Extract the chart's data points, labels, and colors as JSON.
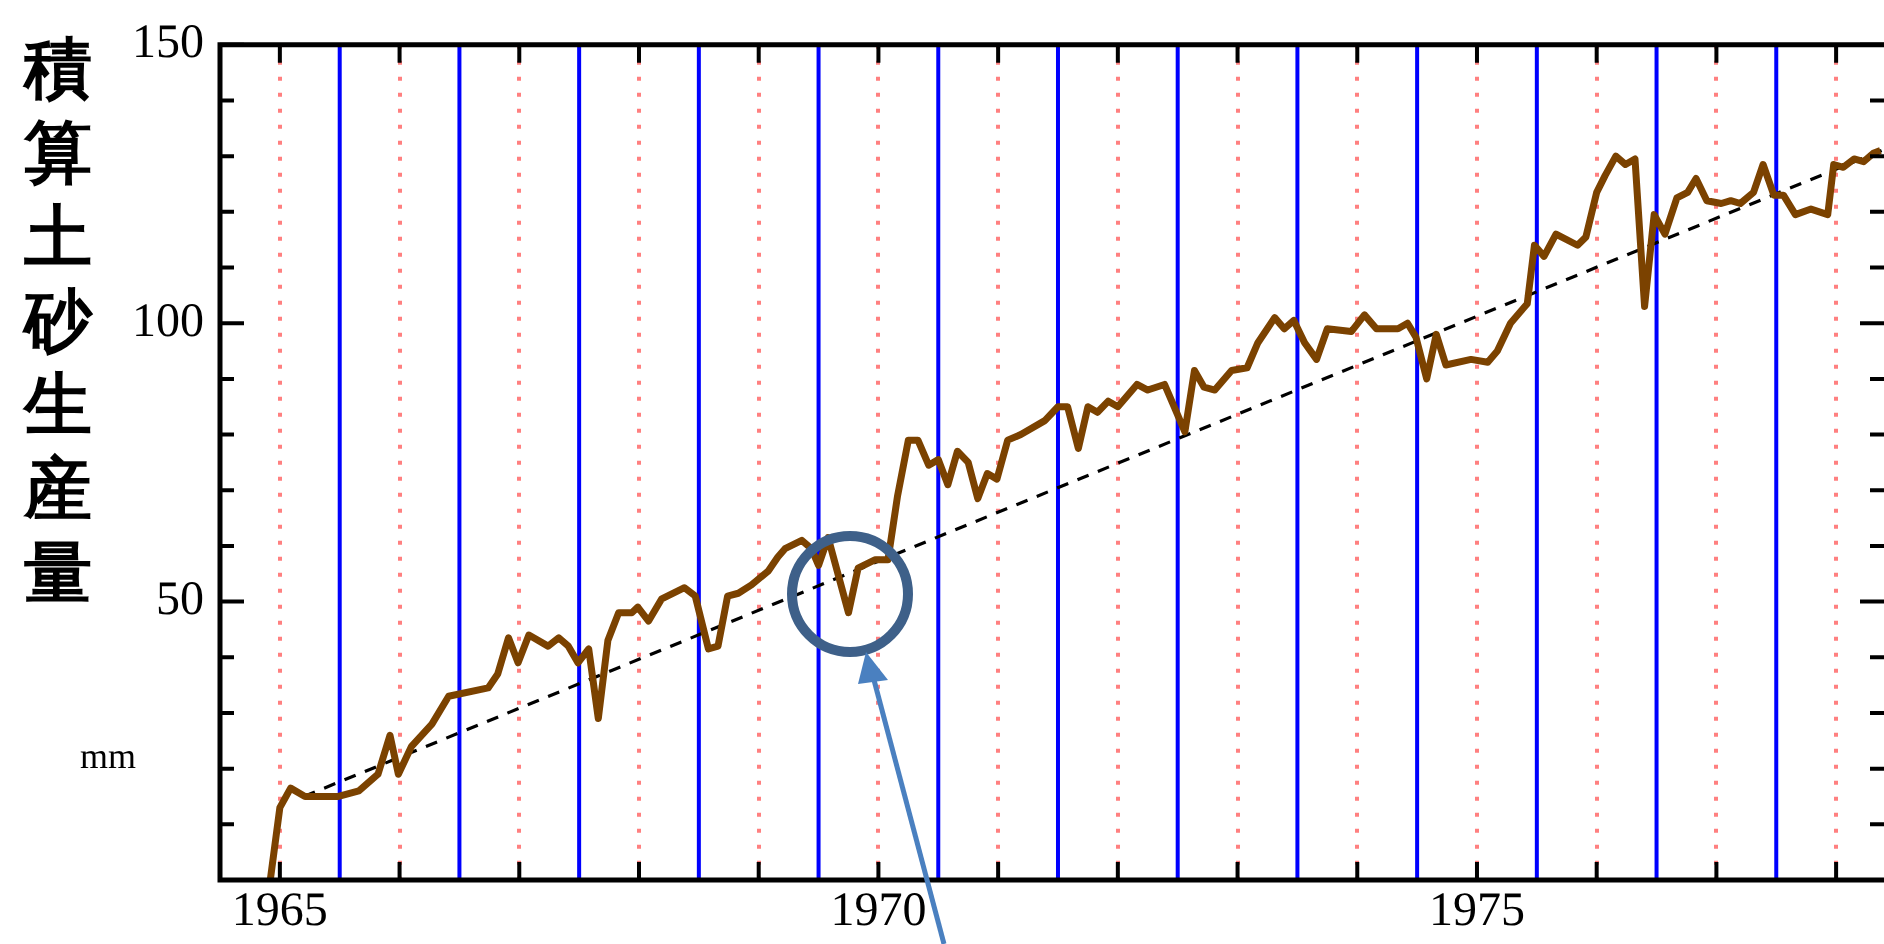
{
  "chart_data": {
    "type": "line",
    "ylabel": "積算土砂生産量",
    "annotations": [
      "mm"
    ],
    "xlim": [
      1964.5,
      1978.4
    ],
    "ylim": [
      0,
      150
    ],
    "xticks": [
      1965,
      {
        "value": 1966,
        "label": null
      },
      {
        "value": 1967,
        "label": null
      },
      {
        "value": 1968,
        "label": null
      },
      {
        "value": 1969,
        "label": null
      },
      1970,
      {
        "value": 1971,
        "label": null
      },
      {
        "value": 1972,
        "label": null
      },
      {
        "value": 1973,
        "label": null
      },
      {
        "value": 1974,
        "label": null
      },
      1975,
      {
        "value": 1976,
        "label": null
      },
      {
        "value": 1977,
        "label": null
      },
      {
        "value": 1978,
        "label": null
      }
    ],
    "yticks": [
      {
        "value": 10,
        "label": null
      },
      {
        "value": 20,
        "label": null
      },
      {
        "value": 30,
        "label": null
      },
      {
        "value": 40,
        "label": null
      },
      50,
      {
        "value": 60,
        "label": null
      },
      {
        "value": 70,
        "label": null
      },
      {
        "value": 80,
        "label": null
      },
      {
        "value": 90,
        "label": null
      },
      100,
      {
        "value": 110,
        "label": null
      },
      {
        "value": 120,
        "label": null
      },
      {
        "value": 130,
        "label": null
      },
      {
        "value": 140,
        "label": null
      },
      150
    ],
    "grid": "x",
    "legend": false,
    "marker": "none",
    "ref_lines": [
      {
        "axis": "x",
        "value": 1965.5,
        "color": "#0000ff",
        "line_style": "solid"
      },
      {
        "axis": "x",
        "value": 1966.5,
        "color": "#0000ff",
        "line_style": "solid"
      },
      {
        "axis": "x",
        "value": 1967.5,
        "color": "#0000ff",
        "line_style": "solid"
      },
      {
        "axis": "x",
        "value": 1968.5,
        "color": "#0000ff",
        "line_style": "solid"
      },
      {
        "axis": "x",
        "value": 1969.5,
        "color": "#0000ff",
        "line_style": "solid"
      },
      {
        "axis": "x",
        "value": 1970.5,
        "color": "#0000ff",
        "line_style": "solid"
      },
      {
        "axis": "x",
        "value": 1971.5,
        "color": "#0000ff",
        "line_style": "solid"
      },
      {
        "axis": "x",
        "value": 1972.5,
        "color": "#0000ff",
        "line_style": "solid"
      },
      {
        "axis": "x",
        "value": 1973.5,
        "color": "#0000ff",
        "line_style": "solid"
      },
      {
        "axis": "x",
        "value": 1974.5,
        "color": "#0000ff",
        "line_style": "solid"
      },
      {
        "axis": "x",
        "value": 1975.5,
        "color": "#0000ff",
        "line_style": "solid"
      },
      {
        "axis": "x",
        "value": 1976.5,
        "color": "#0000ff",
        "line_style": "solid"
      },
      {
        "axis": "x",
        "value": 1977.5,
        "color": "#0000ff",
        "line_style": "solid"
      }
    ],
    "series": [
      {
        "type": "line",
        "color": "#7b4200",
        "line_style": "solid",
        "x": [
          1964.92,
          1965.0,
          1965.09,
          1965.21,
          1965.49,
          1965.66,
          1965.82,
          1965.92,
          1965.99,
          1966.1,
          1966.27,
          1966.41,
          1966.74,
          1966.82,
          1966.91,
          1966.99,
          1967.08,
          1967.24,
          1967.33,
          1967.41,
          1967.49,
          1967.58,
          1967.66,
          1967.74,
          1967.83,
          1967.94,
          1967.99,
          1968.08,
          1968.19,
          1968.38,
          1968.47,
          1968.58,
          1968.66,
          1968.74,
          1968.83,
          1968.94,
          1969.08,
          1969.16,
          1969.22,
          1969.36,
          1969.44,
          1969.5,
          1969.58,
          1969.75,
          1969.83,
          1969.97,
          1970.08,
          1970.16,
          1970.25,
          1970.33,
          1970.42,
          1970.5,
          1970.58,
          1970.66,
          1970.75,
          1970.83,
          1970.91,
          1970.99,
          1971.08,
          1971.19,
          1971.39,
          1971.5,
          1971.58,
          1971.67,
          1971.75,
          1971.83,
          1971.92,
          1972.0,
          1972.16,
          1972.25,
          1972.39,
          1972.47,
          1972.56,
          1972.64,
          1972.72,
          1972.81,
          1972.95,
          1973.08,
          1973.17,
          1973.31,
          1973.39,
          1973.47,
          1973.56,
          1973.66,
          1973.75,
          1973.95,
          1974.06,
          1974.16,
          1974.25,
          1974.34,
          1974.42,
          1974.49,
          1974.58,
          1974.66,
          1974.74,
          1974.95,
          1975.09,
          1975.17,
          1975.28,
          1975.42,
          1975.48,
          1975.56,
          1975.66,
          1975.84,
          1975.91,
          1976.0,
          1976.07,
          1976.16,
          1976.24,
          1976.32,
          1976.4,
          1976.48,
          1976.57,
          1976.67,
          1976.76,
          1976.83,
          1976.92,
          1977.04,
          1977.12,
          1977.2,
          1977.31,
          1977.39,
          1977.48,
          1977.56,
          1977.66,
          1977.79,
          1977.93,
          1977.98,
          1978.06,
          1978.15,
          1978.23,
          1978.31,
          1978.37
        ],
        "values": [
          0,
          13,
          16.5,
          15,
          15,
          16,
          19,
          26,
          19,
          24,
          28,
          33,
          34.5,
          37,
          43.5,
          39,
          44,
          42,
          43.5,
          42,
          39,
          41.5,
          29,
          43,
          48,
          48,
          49,
          46.5,
          50.5,
          52.5,
          51,
          41.5,
          42,
          51,
          51.5,
          53,
          55.5,
          58,
          59.5,
          61,
          59.5,
          56.5,
          61.5,
          48,
          56,
          57.5,
          57.5,
          69,
          79,
          79,
          74.5,
          75.5,
          71,
          77,
          75,
          68.5,
          73,
          72,
          79,
          80,
          82.5,
          85,
          85,
          77.5,
          85,
          84,
          86,
          85,
          89,
          88,
          89,
          85,
          80.5,
          91.5,
          88.5,
          88,
          91.5,
          92,
          96.5,
          101,
          99,
          100.5,
          96.5,
          93.5,
          99,
          98.5,
          101.5,
          99,
          99,
          99,
          100,
          97.5,
          90,
          98,
          92.5,
          93.5,
          93,
          95,
          100,
          103.5,
          114,
          112,
          116,
          114,
          115.5,
          123.5,
          126.5,
          130,
          128.5,
          129.5,
          103,
          119.5,
          116,
          122.5,
          123.5,
          126,
          122,
          121.5,
          122,
          121.5,
          123.5,
          128.5,
          123,
          123,
          119.5,
          120.5,
          119.5,
          128.5,
          128,
          129.5,
          129,
          130.5,
          131
        ]
      },
      {
        "type": "line",
        "color": "#000000",
        "line_style": "dashed",
        "x": [
          1965.2,
          1978.38
        ],
        "values": [
          15,
          131
        ]
      }
    ]
  }
}
